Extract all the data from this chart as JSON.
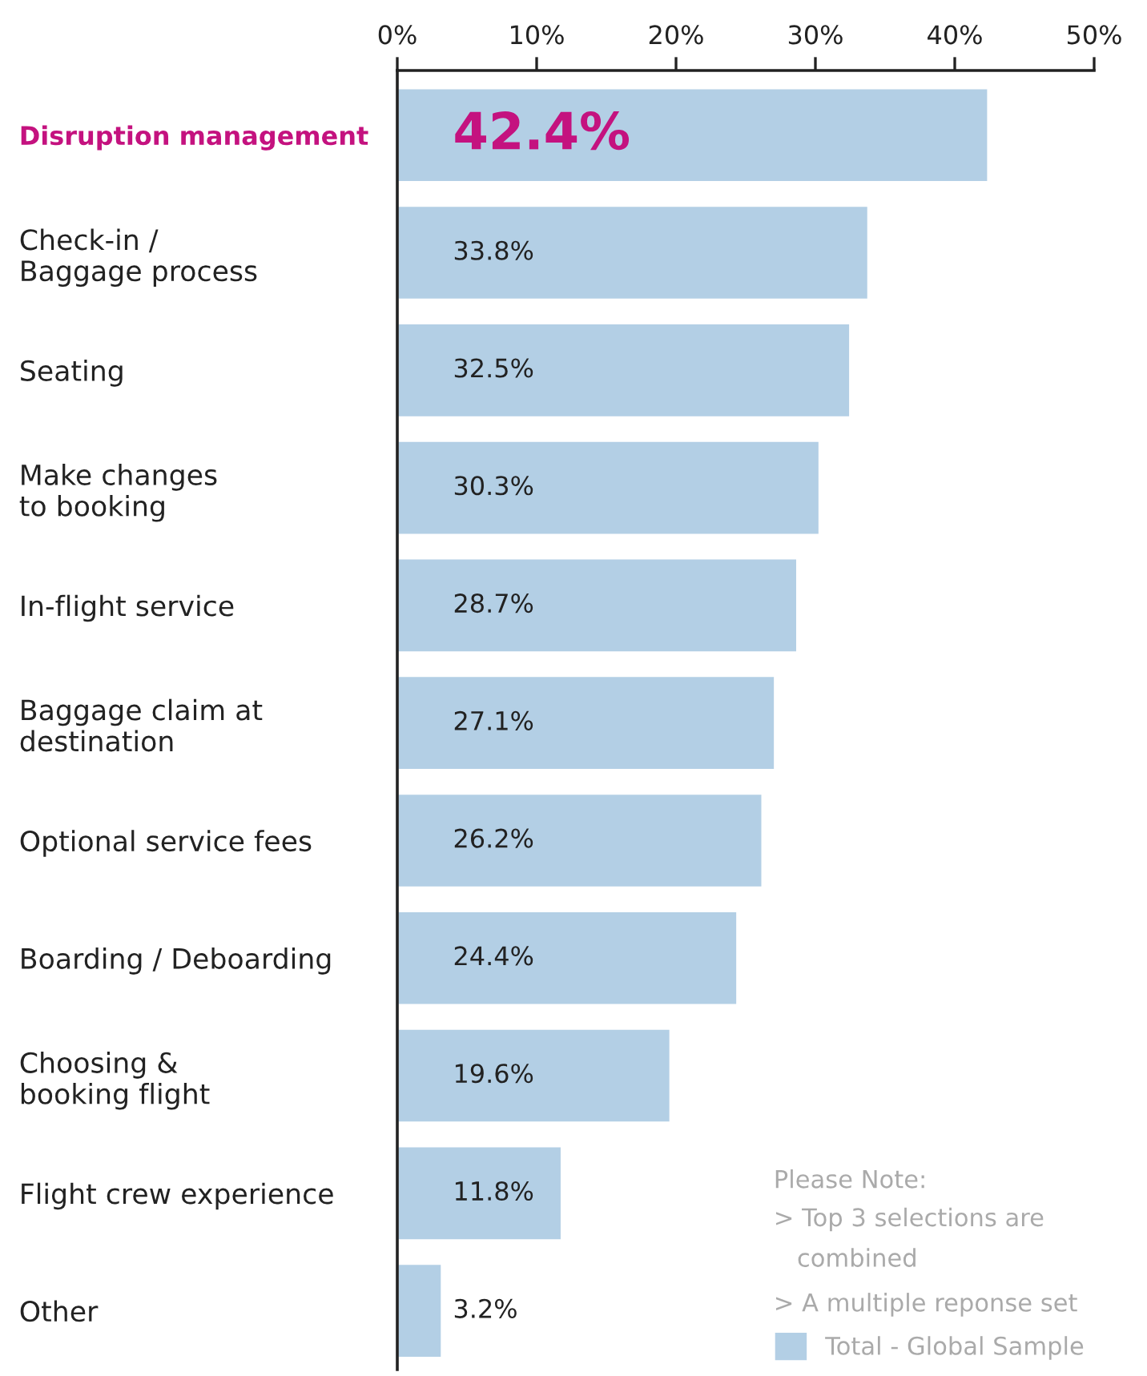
{
  "chart_data": {
    "type": "bar",
    "orientation": "horizontal",
    "categories": [
      "Disruption management",
      "Check-in /\nBaggage process",
      "Seating",
      "Make changes\nto booking",
      "In-flight service",
      "Baggage claim at\ndestination",
      "Optional service fees",
      "Boarding / Deboarding",
      "Choosing &\nbooking flight",
      "Flight crew experience",
      "Other"
    ],
    "series": [
      {
        "name": "Total - Global Sample",
        "color": "#b3cfe5",
        "values": [
          42.4,
          33.8,
          32.5,
          30.3,
          28.7,
          27.1,
          26.2,
          24.4,
          19.6,
          11.8,
          3.2
        ],
        "value_labels": [
          "42.4%",
          "33.8%",
          "32.5%",
          "30.3%",
          "28.7%",
          "27.1%",
          "26.2%",
          "24.4%",
          "19.6%",
          "11.8%",
          "3.2%"
        ]
      }
    ],
    "xlim": [
      0,
      50
    ],
    "xticks": [
      {
        "value": 0,
        "label": "0%"
      },
      {
        "value": 10,
        "label": "10%"
      },
      {
        "value": 20,
        "label": "20%"
      },
      {
        "value": 30,
        "label": "30%"
      },
      {
        "value": 40,
        "label": "40%"
      },
      {
        "value": 50,
        "label": "50%"
      }
    ],
    "annotations": [
      "Please Note:",
      "> Top 3 selections are\n   combined",
      "> A multiple reponse set"
    ],
    "legend": "bottom right",
    "grid": false
  }
}
